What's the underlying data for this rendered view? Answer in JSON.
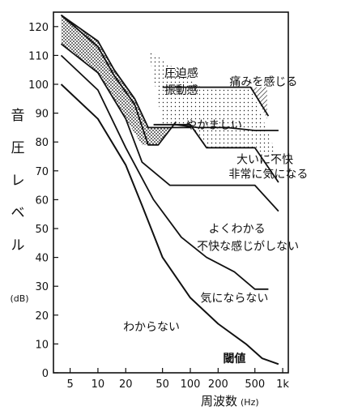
{
  "chart_data": {
    "type": "line",
    "ylabel": [
      "音",
      "圧",
      "レ",
      "ベ",
      "ル"
    ],
    "yunit": "(dB)",
    "xlabel": "周波数",
    "xunit": "(Hz)",
    "xscale": "log",
    "xlim": [
      3.3,
      1150
    ],
    "ylim": [
      0,
      125
    ],
    "x_ticks": [
      5,
      10,
      20,
      50,
      100,
      200,
      500,
      1000
    ],
    "x_tick_labels": [
      "5",
      "10",
      "20",
      "50",
      "100",
      "200",
      "500",
      "1k"
    ],
    "y_ticks": [
      0,
      10,
      20,
      30,
      40,
      50,
      60,
      70,
      80,
      90,
      100,
      110,
      120
    ],
    "series": [
      {
        "key": "pressure_upper",
        "x": [
          4,
          10,
          15,
          25,
          35,
          50,
          70,
          100
        ],
        "y": [
          124,
          115,
          105,
          95,
          85,
          85,
          85,
          85
        ]
      },
      {
        "key": "pressure_lower",
        "x": [
          4,
          10,
          15,
          25,
          35,
          45,
          70
        ],
        "y": [
          124,
          113,
          103,
          93,
          79,
          79,
          87
        ]
      },
      {
        "key": "pain",
        "x": [
          50,
          100,
          150,
          300,
          450,
          700
        ],
        "y": [
          99,
          99,
          99,
          99,
          99,
          89
        ]
      },
      {
        "key": "annoying",
        "x": [
          65,
          100,
          150,
          300,
          500,
          900
        ],
        "y": [
          86,
          86,
          78,
          78,
          78,
          66
        ]
      },
      {
        "key": "very_annoying",
        "x": [
          4,
          10,
          20,
          30,
          60,
          100,
          200,
          500,
          900
        ],
        "y": [
          114,
          104,
          88,
          73,
          65,
          65,
          65,
          65,
          56
        ]
      },
      {
        "key": "not_bothered",
        "x": [
          4,
          10,
          20,
          40,
          80,
          150,
          300,
          500,
          700
        ],
        "y": [
          110,
          98,
          78,
          60,
          47,
          40,
          35,
          29,
          29
        ]
      },
      {
        "key": "threshold",
        "x": [
          4,
          10,
          20,
          30,
          50,
          100,
          200,
          400,
          600,
          900
        ],
        "y": [
          100,
          88,
          72,
          58,
          40,
          26,
          17,
          10,
          5,
          3
        ]
      },
      {
        "key": "extra",
        "x": [
          40,
          70,
          120,
          250,
          500,
          900
        ],
        "y": [
          86,
          86,
          85,
          85,
          84,
          84
        ]
      }
    ],
    "annotations": [
      {
        "text": "圧迫感",
        "x": 80,
        "y": 104
      },
      {
        "text": "振動感",
        "x": 80,
        "y": 98
      },
      {
        "text": "痛みを感じる",
        "x": 620,
        "y": 101
      },
      {
        "text": "やかましい",
        "x": 180,
        "y": 86
      },
      {
        "text": "大いに不快",
        "x": 640,
        "y": 74
      },
      {
        "text": "非常に気になる",
        "x": 700,
        "y": 69
      },
      {
        "text": "よくわかる",
        "x": 320,
        "y": 50
      },
      {
        "text": "不快な感じがしない",
        "x": 420,
        "y": 44
      },
      {
        "text": "気にならない",
        "x": 300,
        "y": 26
      },
      {
        "text": "わからない",
        "x": 38,
        "y": 16
      },
      {
        "text": "閾値",
        "x": 300,
        "y": 5
      }
    ]
  }
}
